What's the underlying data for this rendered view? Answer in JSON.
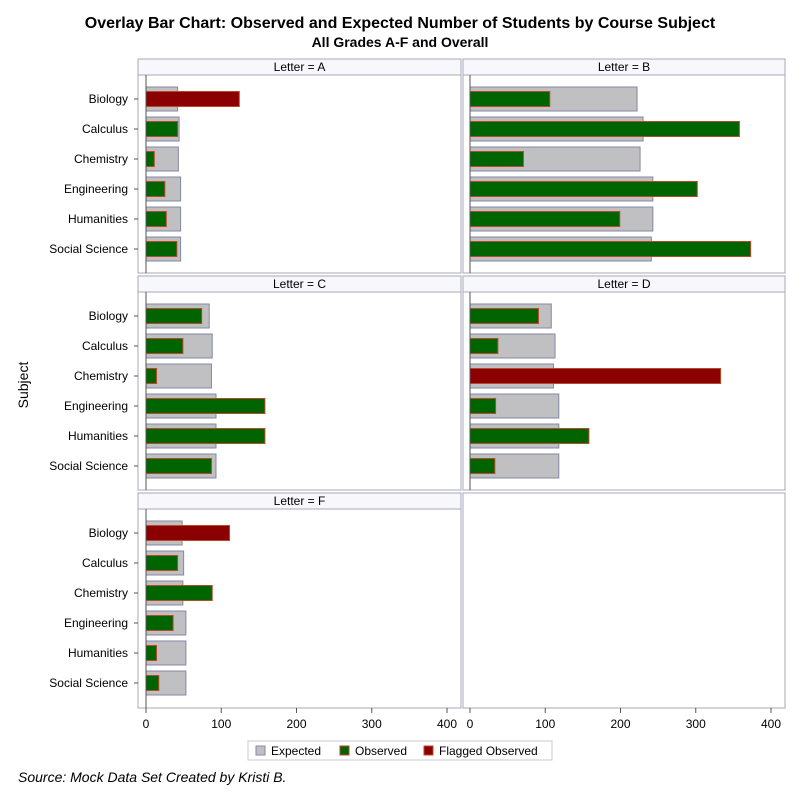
{
  "chart_data": {
    "type": "bar",
    "orientation": "horizontal",
    "title": "Overlay Bar Chart: Observed and Expected Number of Students by Course Subject",
    "subtitle": "All Grades A-F and Overall",
    "ylabel": "Subject",
    "xlabel": "",
    "xlim": [
      0,
      400
    ],
    "xticks": [
      0,
      100,
      200,
      300,
      400
    ],
    "panel_prefix": "Letter = ",
    "categories": [
      "Biology",
      "Calculus",
      "Chemistry",
      "Engineering",
      "Humanities",
      "Social Science"
    ],
    "panels": [
      {
        "name": "A",
        "expected": [
          42,
          44,
          43,
          46,
          46,
          46
        ],
        "observed": [
          124,
          42,
          11,
          25,
          27,
          41
        ],
        "flagged": [
          true,
          false,
          false,
          false,
          false,
          false
        ]
      },
      {
        "name": "B",
        "expected": [
          222,
          230,
          226,
          243,
          243,
          241
        ],
        "observed": [
          106,
          358,
          71,
          302,
          199,
          373
        ],
        "flagged": [
          false,
          false,
          false,
          false,
          false,
          false
        ]
      },
      {
        "name": "C",
        "expected": [
          84,
          88,
          87,
          93,
          93,
          93
        ],
        "observed": [
          74,
          49,
          14,
          158,
          158,
          87
        ],
        "flagged": [
          false,
          false,
          false,
          false,
          false,
          false
        ]
      },
      {
        "name": "D",
        "expected": [
          108,
          113,
          111,
          118,
          118,
          118
        ],
        "observed": [
          91,
          37,
          333,
          34,
          158,
          33
        ],
        "flagged": [
          false,
          false,
          true,
          false,
          false,
          false
        ]
      },
      {
        "name": "F",
        "expected": [
          48,
          50,
          49,
          53,
          53,
          53
        ],
        "observed": [
          111,
          42,
          88,
          36,
          14,
          17
        ],
        "flagged": [
          true,
          false,
          false,
          false,
          false,
          false
        ]
      }
    ],
    "legend": [
      "Expected",
      "Observed",
      "Flagged Observed"
    ],
    "legend_position": "bottom-center",
    "colors": {
      "expected": "#c0c0c2",
      "expected_border": "#8488a4",
      "observed": "#006400",
      "flagged": "#8b0000",
      "bar_border": "#b84a2a",
      "strip_bg": "#f7f7fc",
      "frame": "#a8a8b8",
      "axis": "#555555"
    }
  },
  "footnote": "Source: Mock Data Set Created by Kristi B."
}
